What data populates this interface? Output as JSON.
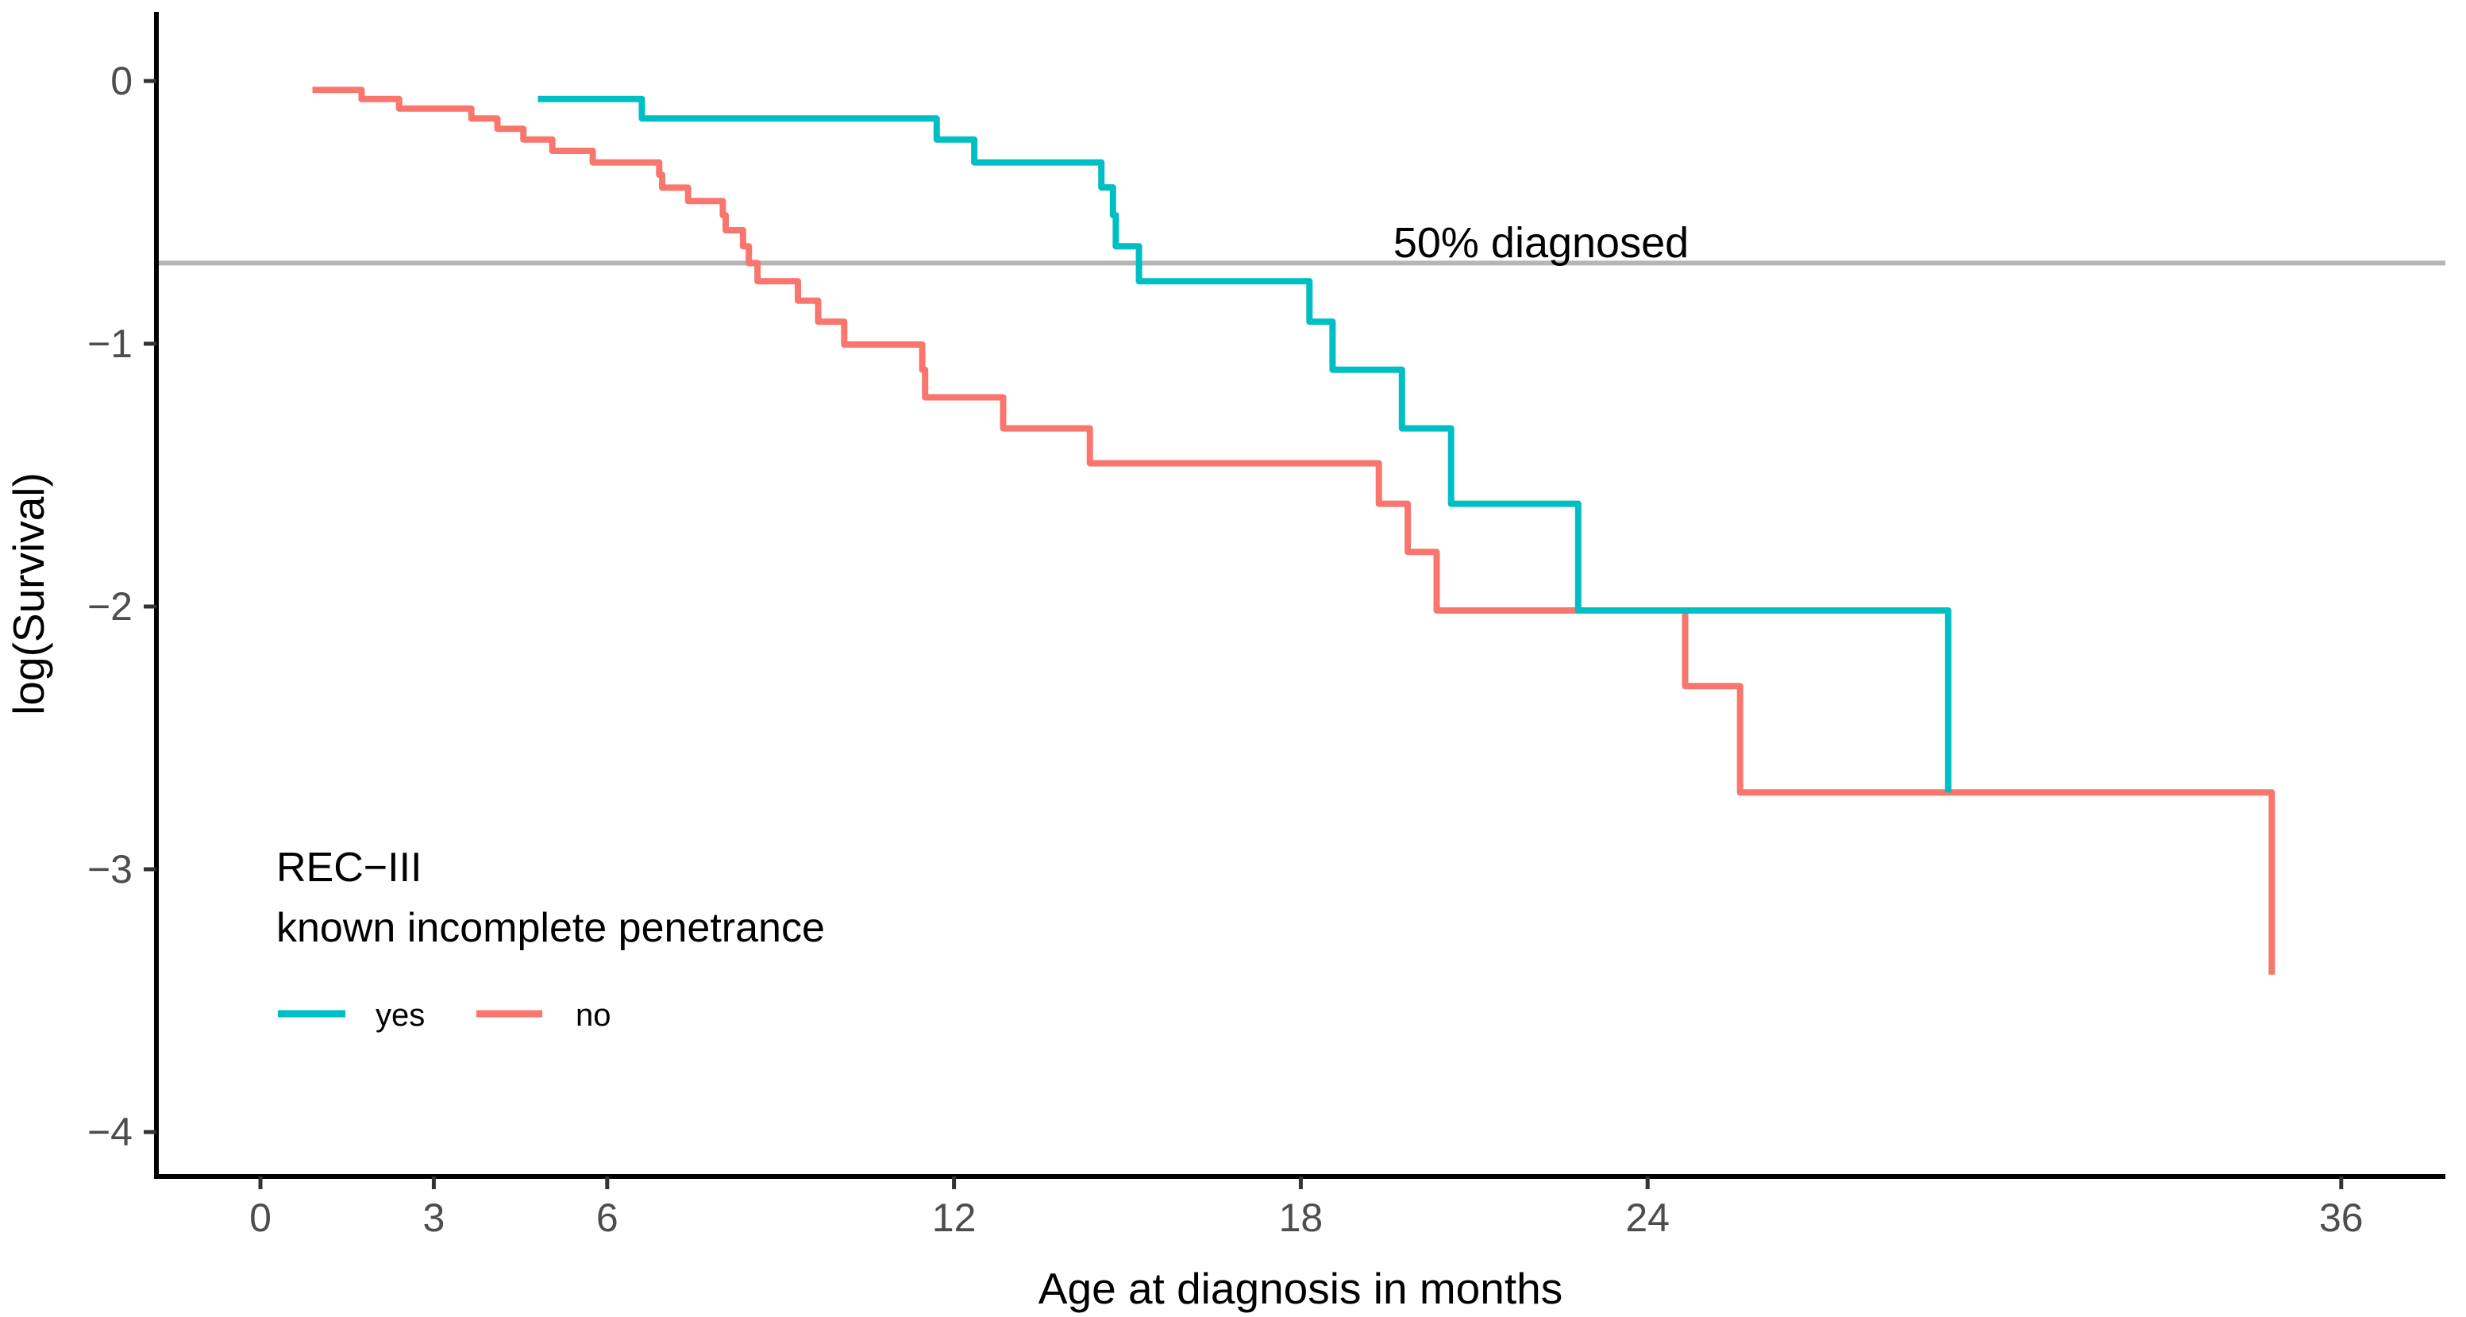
{
  "chart_data": {
    "type": "line",
    "subtype": "step-survival-curve",
    "title": "",
    "xlabel": "Age at diagnosis in months",
    "ylabel": "log(Survival)",
    "x_ticks": [
      0,
      3,
      6,
      12,
      18,
      24,
      36
    ],
    "y_ticks": [
      0,
      -1,
      -2,
      -3,
      -4
    ],
    "xlim": [
      -1.8,
      37.8
    ],
    "ylim": [
      -4.17,
      0.26
    ],
    "grid": "off",
    "reference_line": {
      "y": -0.693,
      "label": "50% diagnosed",
      "color": "#b5b5b5"
    },
    "legend": {
      "position": "inside-bottom-left",
      "title_line1": "REC−III",
      "title_line2": "known incomplete penetrance",
      "items": [
        {
          "label": "yes",
          "color": "#00BFC4"
        },
        {
          "label": "no",
          "color": "#F8766D"
        }
      ]
    },
    "series": [
      {
        "name": "no",
        "color": "#F8766D",
        "points": [
          [
            0.9,
            -0.034
          ],
          [
            1.75,
            -0.069
          ],
          [
            2.4,
            -0.105
          ],
          [
            3.65,
            -0.143
          ],
          [
            4.1,
            -0.182
          ],
          [
            4.55,
            -0.223
          ],
          [
            5.05,
            -0.266
          ],
          [
            5.75,
            -0.31
          ],
          [
            6.9,
            -0.357
          ],
          [
            6.95,
            -0.406
          ],
          [
            7.4,
            -0.457
          ],
          [
            8.0,
            -0.511
          ],
          [
            8.05,
            -0.568
          ],
          [
            8.35,
            -0.629
          ],
          [
            8.45,
            -0.693
          ],
          [
            8.6,
            -0.762
          ],
          [
            9.3,
            -0.836
          ],
          [
            9.65,
            -0.916
          ],
          [
            10.1,
            -1.003
          ],
          [
            11.45,
            -1.099
          ],
          [
            11.5,
            -1.204
          ],
          [
            12.85,
            -1.322
          ],
          [
            14.35,
            -1.455
          ],
          [
            19.35,
            -1.609
          ],
          [
            19.85,
            -1.792
          ],
          [
            20.35,
            -2.015
          ],
          [
            24.65,
            -2.303
          ],
          [
            25.6,
            -2.708
          ],
          [
            34.8,
            -3.401
          ]
        ]
      },
      {
        "name": "yes",
        "color": "#00BFC4",
        "points": [
          [
            4.8,
            -0.069
          ],
          [
            6.6,
            -0.143
          ],
          [
            11.7,
            -0.223
          ],
          [
            12.35,
            -0.31
          ],
          [
            14.55,
            -0.405
          ],
          [
            14.75,
            -0.511
          ],
          [
            14.8,
            -0.629
          ],
          [
            15.2,
            -0.762
          ],
          [
            18.15,
            -0.916
          ],
          [
            18.55,
            -1.099
          ],
          [
            19.75,
            -1.322
          ],
          [
            20.6,
            -1.609
          ],
          [
            22.8,
            -2.015
          ],
          [
            29.2,
            -2.708
          ]
        ]
      }
    ]
  },
  "style": {
    "axis_line_color": "#000000",
    "tick_color": "#333333",
    "tick_label_color": "#4d4d4d",
    "background": "#ffffff"
  }
}
